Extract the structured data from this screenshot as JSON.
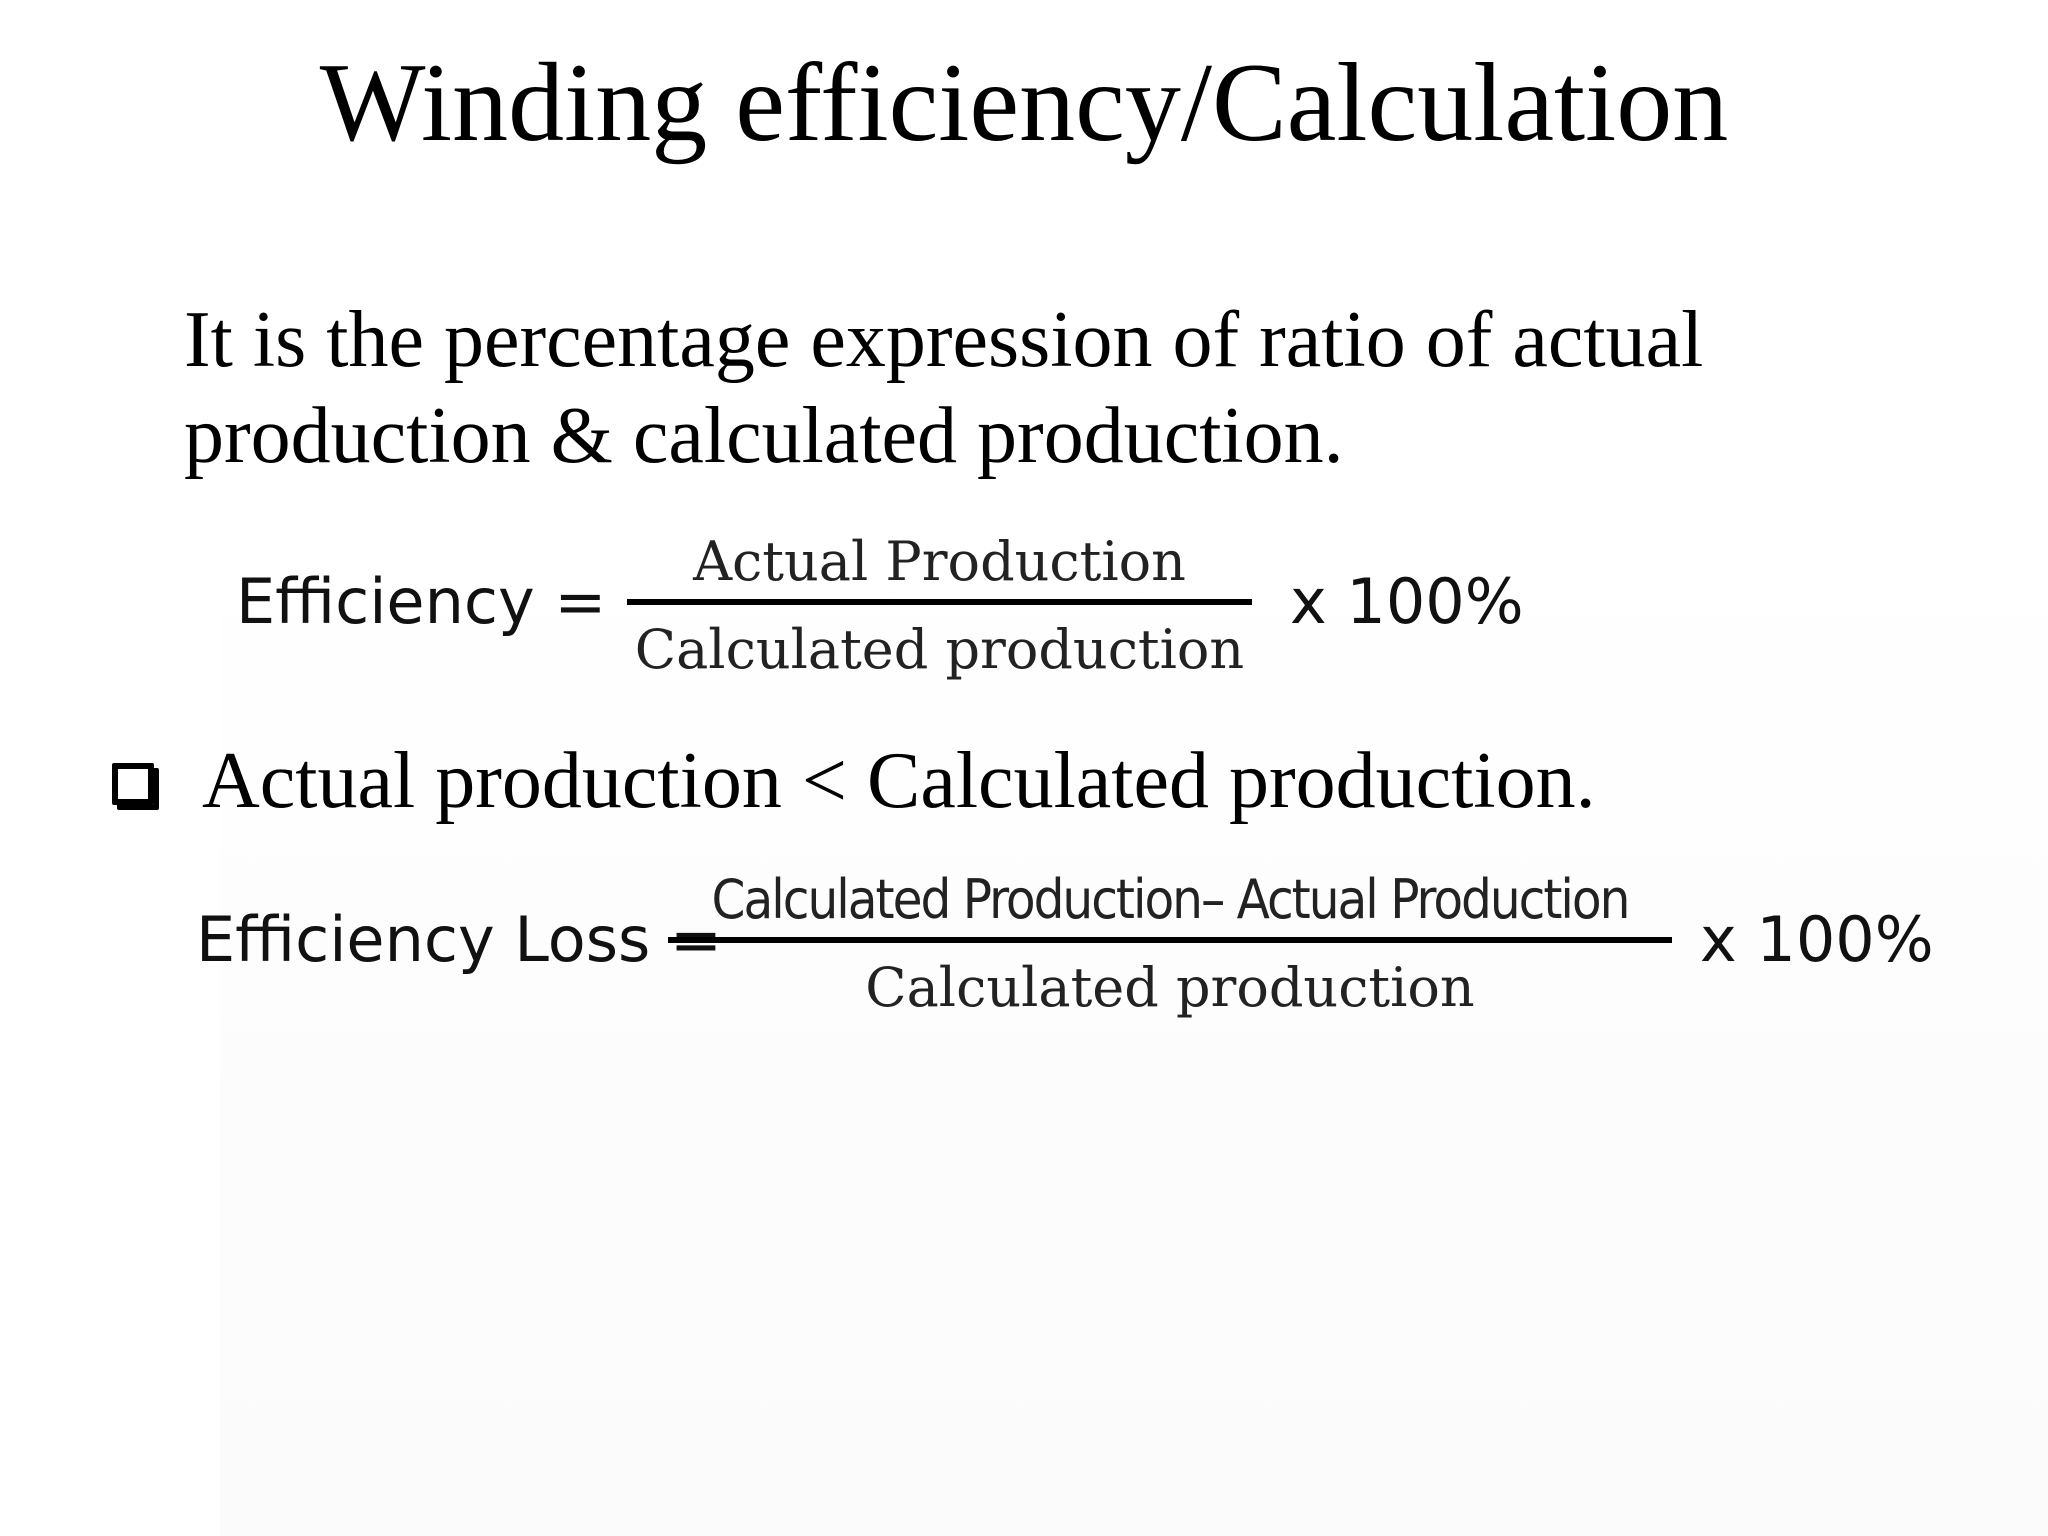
{
  "slide": {
    "title": "Winding efficiency/Calculation",
    "definition_lines": [
      "It is the percentage expression of ratio of actual",
      "production & calculated production."
    ],
    "bullet_text": "Actual production < Calculated production."
  },
  "formula_efficiency": {
    "lhs": "Efficiency =",
    "numerator": "Actual Production",
    "denominator": "Calculated production",
    "multiplier": "x 100%"
  },
  "formula_loss": {
    "lhs": "Efficiency Loss =",
    "numerator": "Calculated Production– Actual Production",
    "denominator": "Calculated production",
    "multiplier": "x 100%"
  }
}
